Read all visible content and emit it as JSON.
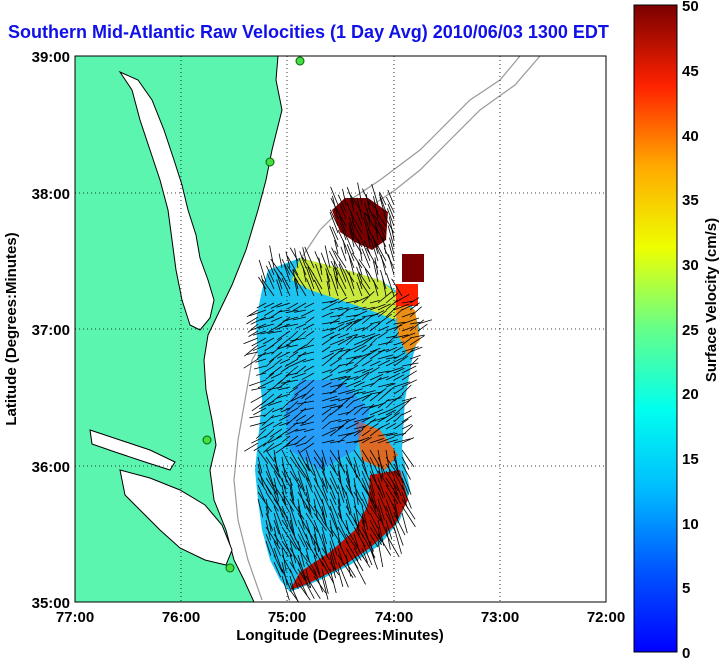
{
  "title": "Southern Mid-Atlantic Raw Velocities (1 Day Avg) 2010/06/03 1300 EDT",
  "axes": {
    "xlabel": "Longitude (Degrees:Minutes)",
    "ylabel": "Latitude (Degrees:Minutes)",
    "x_ticks": [
      "77:00",
      "76:00",
      "75:00",
      "74:00",
      "73:00",
      "72:00"
    ],
    "y_ticks": [
      "39:00",
      "38:00",
      "37:00",
      "36:00",
      "35:00"
    ]
  },
  "colorbar": {
    "label": "Surface Velocity (cm/s)",
    "ticks": [
      "50",
      "45",
      "40",
      "35",
      "30",
      "25",
      "20",
      "15",
      "10",
      "5",
      "0"
    ],
    "min": 0,
    "max": 50,
    "colormap": "jet"
  },
  "chart_data": {
    "type": "heatmap",
    "title": "Southern Mid-Atlantic Raw Velocities (1 Day Avg) 2010/06/03 1300 EDT",
    "xlabel": "Longitude (Degrees:Minutes)",
    "ylabel": "Latitude (Degrees:Minutes)",
    "xlim": [
      "77:00",
      "72:00"
    ],
    "ylim": [
      "35:00",
      "39:00"
    ],
    "grid": true,
    "colorbar_range_cm_s": [
      0,
      50
    ]
  },
  "colors": {
    "land": "#5cf5b0",
    "water": "#ffffff",
    "coastline": "#000000",
    "bathymetry": "#999999",
    "title": "#1010e8",
    "station": "#44dd44"
  }
}
